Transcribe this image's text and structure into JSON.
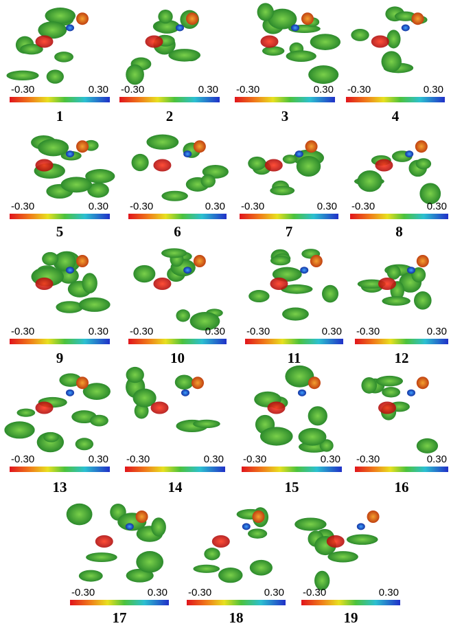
{
  "panels": [
    {
      "id": "1",
      "min": "-0.30",
      "max": "0.30"
    },
    {
      "id": "2",
      "min": "-0.30",
      "max": "0.30"
    },
    {
      "id": "3",
      "min": "-0.30",
      "max": "0.30"
    },
    {
      "id": "4",
      "min": "-0.30",
      "max": "0.30"
    },
    {
      "id": "5",
      "min": "-0.30",
      "max": "0.30"
    },
    {
      "id": "6",
      "min": "-0.30",
      "max": "0.30"
    },
    {
      "id": "7",
      "min": "-0.30",
      "max": "0.30"
    },
    {
      "id": "8",
      "min": "-0.30",
      "max": "0.30"
    },
    {
      "id": "9",
      "min": "-0.30",
      "max": "0.30"
    },
    {
      "id": "10",
      "min": "-0.30",
      "max": "0.30"
    },
    {
      "id": "11",
      "min": "-0.30",
      "max": "0.30"
    },
    {
      "id": "12",
      "min": "-0.30",
      "max": "0.30"
    },
    {
      "id": "13",
      "min": "-0.30",
      "max": "0.30"
    },
    {
      "id": "14",
      "min": "-0.30",
      "max": "0.30"
    },
    {
      "id": "15",
      "min": "-0.30",
      "max": "0.30"
    },
    {
      "id": "16",
      "min": "-0.30",
      "max": "0.30"
    },
    {
      "id": "17",
      "min": "-0.30",
      "max": "0.30"
    },
    {
      "id": "18",
      "min": "-0.30",
      "max": "0.30"
    },
    {
      "id": "19",
      "min": "-0.30",
      "max": "0.30"
    }
  ]
}
